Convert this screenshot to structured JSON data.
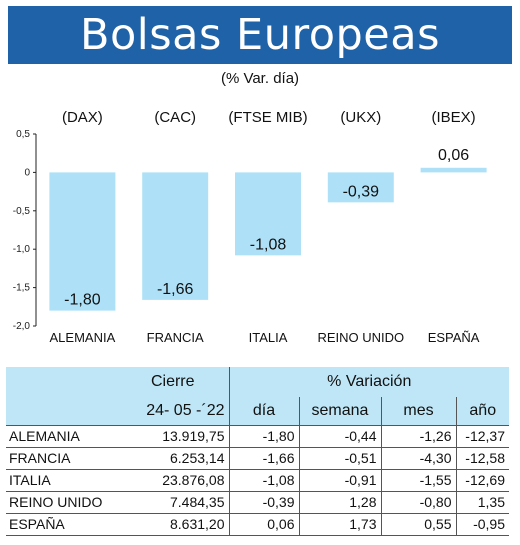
{
  "header": {
    "title": "Bolsas Europeas",
    "subtitle": "(% Var. día)"
  },
  "chart_data": {
    "type": "bar",
    "categories": [
      "ALEMANIA",
      "FRANCIA",
      "ITALIA",
      "REINO UNIDO",
      "ESPAÑA"
    ],
    "index_labels": [
      "(DAX)",
      "(CAC)",
      "(FTSE MIB)",
      "(UKX)",
      "(IBEX)"
    ],
    "values": [
      -1.8,
      -1.66,
      -1.08,
      -0.39,
      0.06
    ],
    "value_labels": [
      "-1,80",
      "-1,66",
      "-1,08",
      "-0,39",
      "0,06"
    ],
    "ylim": [
      -2.0,
      0.5
    ],
    "yticks": [
      0.5,
      0,
      -0.5,
      -1.0,
      -1.5,
      -2.0
    ],
    "ytick_labels": [
      "0,5",
      "0",
      "-0,5",
      "-1,0",
      "-1,5",
      "-2,0"
    ],
    "bar_color": "#aee1f7",
    "grid": false
  },
  "table": {
    "group_headers": [
      "Cierre",
      "% Variación"
    ],
    "date_label": "24- 05 -´22",
    "column_headers": [
      "día",
      "semana",
      "mes",
      "año"
    ],
    "rows": [
      {
        "country": "ALEMANIA",
        "cierre": "13.919,75",
        "dia": "-1,80",
        "semana": "-0,44",
        "mes": "-1,26",
        "ano": "-12,37"
      },
      {
        "country": "FRANCIA",
        "cierre": "6.253,14",
        "dia": "-1,66",
        "semana": "-0,51",
        "mes": "-4,30",
        "ano": "-12,58"
      },
      {
        "country": "ITALIA",
        "cierre": "23.876,08",
        "dia": "-1,08",
        "semana": "-0,91",
        "mes": "-1,55",
        "ano": "-12,69"
      },
      {
        "country": "REINO UNIDO",
        "cierre": "7.484,35",
        "dia": "-0,39",
        "semana": "1,28",
        "mes": "-0,80",
        "ano": "1,35"
      },
      {
        "country": "ESPAÑA",
        "cierre": "8.631,20",
        "dia": "0,06",
        "semana": "1,73",
        "mes": "0,55",
        "ano": "-0,95"
      }
    ]
  }
}
